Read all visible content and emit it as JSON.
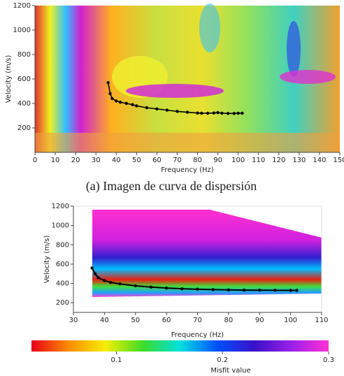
{
  "caption": "(a) Imagen de curva de dispersión",
  "chart_data": [
    {
      "type": "line",
      "xlabel": "Frequency (Hz)",
      "ylabel": "Velocity (m/s)",
      "xlim": [
        0,
        150
      ],
      "xticks": [
        0,
        10,
        20,
        30,
        40,
        50,
        60,
        70,
        80,
        90,
        100,
        110,
        120,
        130,
        140,
        150
      ],
      "ylim": [
        0,
        1200
      ],
      "yticks": [
        200,
        400,
        600,
        800,
        1000,
        1200
      ],
      "x": [
        36,
        37,
        38,
        40,
        42,
        45,
        48,
        50,
        55,
        60,
        65,
        70,
        75,
        80,
        82,
        85,
        88,
        90,
        92,
        95,
        98,
        100,
        102
      ],
      "series": [
        {
          "color": "#000000",
          "values": [
            570,
            480,
            440,
            420,
            410,
            400,
            390,
            380,
            365,
            355,
            345,
            335,
            328,
            322,
            320,
            320,
            322,
            325,
            320,
            318,
            318,
            320,
            320
          ]
        }
      ]
    },
    {
      "type": "line",
      "xlabel": "Frequency (Hz)",
      "ylabel": "Velocity (m/s)",
      "xlim": [
        30,
        110
      ],
      "xticks": [
        30,
        40,
        50,
        60,
        70,
        80,
        90,
        100,
        110
      ],
      "ylim": [
        100,
        1200
      ],
      "yticks": [
        200,
        400,
        600,
        800,
        1000,
        1200
      ],
      "x": [
        36,
        37,
        38,
        40,
        42,
        45,
        50,
        55,
        60,
        65,
        70,
        75,
        80,
        85,
        90,
        95,
        100,
        102
      ],
      "series": [
        {
          "color": "#000000",
          "values": [
            560,
            500,
            460,
            430,
            410,
            395,
            375,
            362,
            352,
            345,
            340,
            336,
            333,
            331,
            330,
            329,
            328,
            328
          ]
        }
      ]
    },
    {
      "type": "colorbar",
      "label": "Misfit value",
      "clim": [
        0.02,
        0.3
      ],
      "ticks": [
        0.1,
        0.2,
        0.3
      ],
      "colors": [
        "#e8001c",
        "#ff8c00",
        "#f5f000",
        "#3cdc28",
        "#00e0e0",
        "#0050ff",
        "#3a10c8",
        "#9a20e8",
        "#ff30d8"
      ]
    }
  ]
}
